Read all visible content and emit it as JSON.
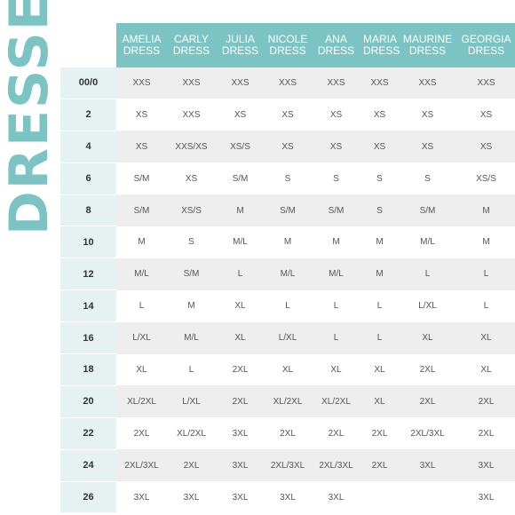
{
  "title": "DRESSES",
  "colors": {
    "accent": "#7cc4c4",
    "size_column": "#e6f2f2",
    "stripe": "#eeeeee"
  },
  "columns": [
    {
      "name": "AMELIA",
      "type": "DRESS"
    },
    {
      "name": "CARLY",
      "type": "DRESS"
    },
    {
      "name": "JULIA",
      "type": "DRESS"
    },
    {
      "name": "NICOLE",
      "type": "DRESS"
    },
    {
      "name": "ANA",
      "type": "DRESS"
    },
    {
      "name": "MARIA",
      "type": "DRESS"
    },
    {
      "name": "MAURINE",
      "type": "DRESS"
    },
    {
      "name": "GEORGIA",
      "type": "DRESS"
    }
  ],
  "rows": [
    {
      "size": "00/0",
      "values": [
        "XXS",
        "XXS",
        "XXS",
        "XXS",
        "XXS",
        "XXS",
        "XXS",
        "XXS"
      ]
    },
    {
      "size": "2",
      "values": [
        "XS",
        "XXS",
        "XS",
        "XS",
        "XS",
        "XS",
        "XS",
        "XS"
      ]
    },
    {
      "size": "4",
      "values": [
        "XS",
        "XXS/XS",
        "XS/S",
        "XS",
        "XS",
        "XS",
        "XS",
        "XS"
      ]
    },
    {
      "size": "6",
      "values": [
        "S/M",
        "XS",
        "S/M",
        "S",
        "S",
        "S",
        "S",
        "XS/S"
      ]
    },
    {
      "size": "8",
      "values": [
        "S/M",
        "XS/S",
        "M",
        "S/M",
        "S/M",
        "S",
        "S/M",
        "M"
      ]
    },
    {
      "size": "10",
      "values": [
        "M",
        "S",
        "M/L",
        "M",
        "M",
        "M",
        "M/L",
        "M"
      ]
    },
    {
      "size": "12",
      "values": [
        "M/L",
        "S/M",
        "L",
        "M/L",
        "M/L",
        "M",
        "L",
        "L"
      ]
    },
    {
      "size": "14",
      "values": [
        "L",
        "M",
        "XL",
        "L",
        "L",
        "L",
        "L/XL",
        "L"
      ]
    },
    {
      "size": "16",
      "values": [
        "L/XL",
        "M/L",
        "XL",
        "L/XL",
        "L",
        "L",
        "XL",
        "XL"
      ]
    },
    {
      "size": "18",
      "values": [
        "XL",
        "L",
        "2XL",
        "XL",
        "XL",
        "XL",
        "2XL",
        "XL"
      ]
    },
    {
      "size": "20",
      "values": [
        "XL/2XL",
        "L/XL",
        "2XL",
        "XL/2XL",
        "XL/2XL",
        "XL",
        "2XL",
        "2XL"
      ]
    },
    {
      "size": "22",
      "values": [
        "2XL",
        "XL/2XL",
        "3XL",
        "2XL",
        "2XL",
        "2XL",
        "2XL/3XL",
        "2XL"
      ]
    },
    {
      "size": "24",
      "values": [
        "2XL/3XL",
        "2XL",
        "3XL",
        "2XL/3XL",
        "2XL/3XL",
        "2XL",
        "3XL",
        "3XL"
      ]
    },
    {
      "size": "26",
      "values": [
        "3XL",
        "3XL",
        "3XL",
        "3XL",
        "3XL",
        "",
        "",
        "3XL"
      ]
    }
  ]
}
